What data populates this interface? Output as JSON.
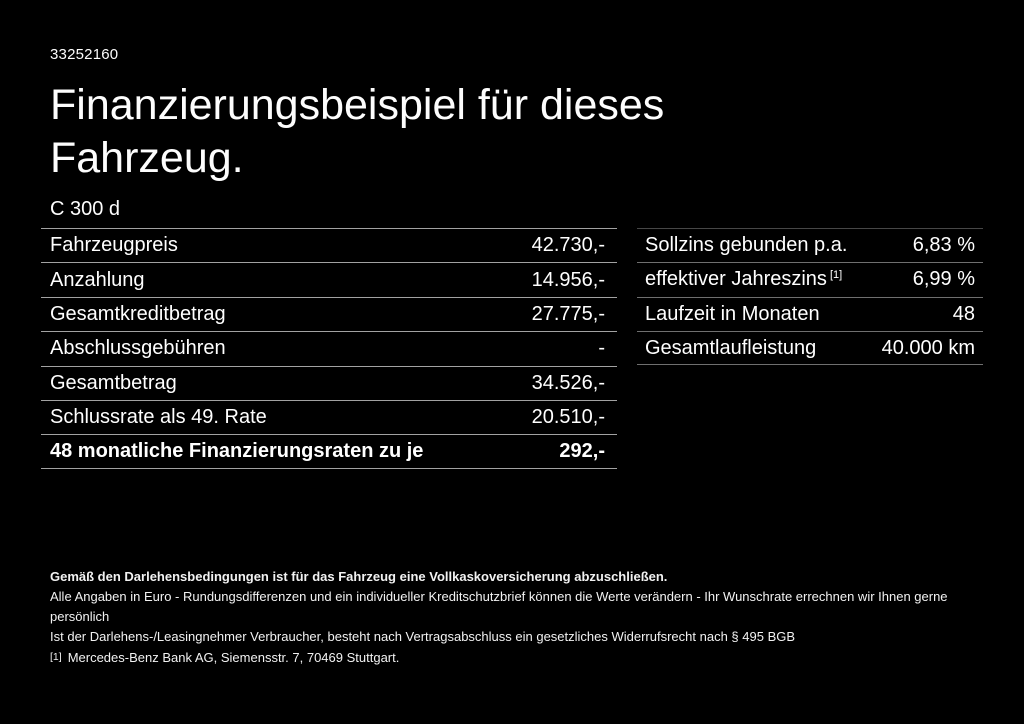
{
  "page": {
    "offer_id": "33252160",
    "title_line1": "Finanzierungsbeispiel für dieses",
    "title_line2": "Fahrzeug.",
    "model": "C 300 d"
  },
  "colors": {
    "background": "#000000",
    "text": "#ffffff",
    "divider_left_table": "#a2a2a2",
    "divider_right_table": "#6f6f6f"
  },
  "finance_table": {
    "rows": [
      {
        "label": "Fahrzeugpreis",
        "value": "42.730,-"
      },
      {
        "label": "Anzahlung",
        "value": "14.956,-"
      },
      {
        "label": "Gesamtkreditbetrag",
        "value": "27.775,-"
      },
      {
        "label": "Abschlussgebühren",
        "value": "-"
      },
      {
        "label": "Gesamtbetrag",
        "value": "34.526,-"
      },
      {
        "label": "Schlussrate als 49. Rate",
        "value": "20.510,-"
      },
      {
        "label": "48 monatliche Finanzierungsraten zu je",
        "value": "292,-"
      }
    ]
  },
  "conditions_table": {
    "rows": [
      {
        "label": "Sollzins gebunden p.a.",
        "value": "6,83 %"
      },
      {
        "label": "effektiver Jahreszins",
        "superscript": "[1]",
        "value": "6,99 %"
      },
      {
        "label": "Laufzeit in Monaten",
        "value": "48"
      },
      {
        "label": "Gesamtlaufleistung",
        "value": "40.000 km"
      }
    ]
  },
  "footer": {
    "line1": "Gemäß den Darlehensbedingungen ist für das Fahrzeug eine Vollkaskoversicherung abzuschließen.",
    "line2": "Alle Angaben in Euro - Rundungsdifferenzen und ein individueller Kreditschutzbrief können die Werte verändern - Ihr Wunschrate errechnen wir Ihnen gerne persönlich",
    "line3": "Ist der Darlehens-/Leasingnehmer Verbraucher, besteht nach Vertragsabschluss ein gesetzliches Widerrufsrecht nach § 495 BGB",
    "footnote_marker": "[1]",
    "footnote_text": "Mercedes-Benz Bank AG, Siemensstr. 7, 70469 Stuttgart."
  }
}
